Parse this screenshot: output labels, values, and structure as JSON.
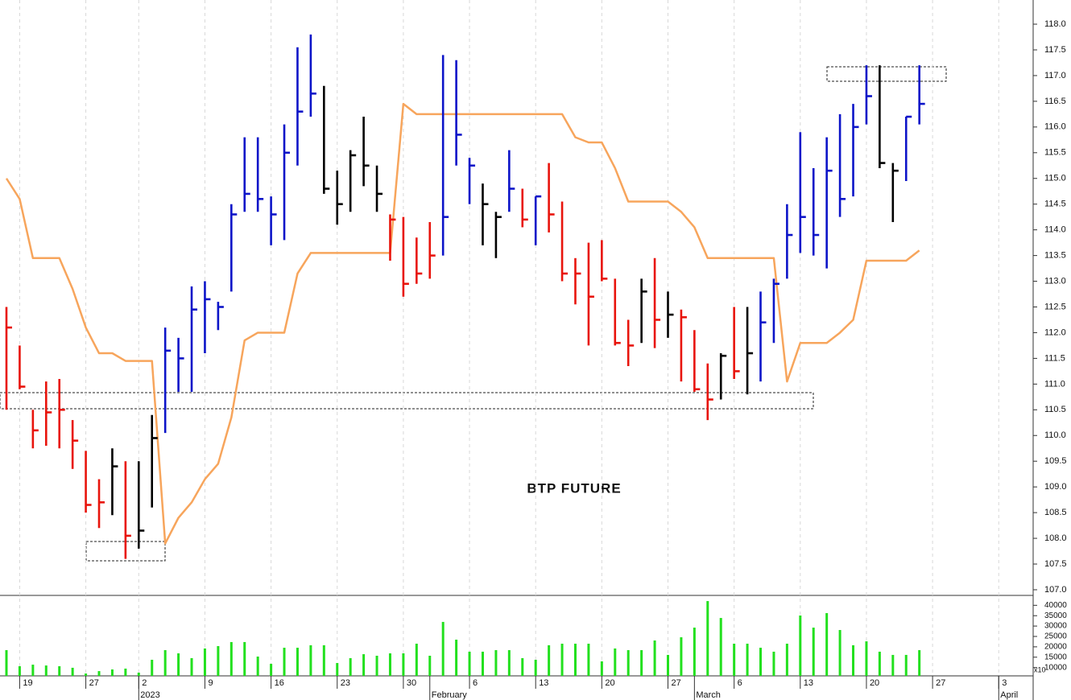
{
  "chart_data": {
    "type": "hlc",
    "title": "BTP FUTURE",
    "categories": [
      null,
      "19",
      null,
      null,
      null,
      null,
      "27",
      null,
      null,
      null,
      "2",
      null,
      null,
      null,
      null,
      "9",
      null,
      null,
      null,
      null,
      "16",
      null,
      null,
      null,
      null,
      "23",
      null,
      null,
      null,
      null,
      "30",
      null,
      null,
      null,
      null,
      "6",
      null,
      null,
      null,
      null,
      "13",
      null,
      null,
      null,
      null,
      "20",
      null,
      null,
      null,
      null,
      "27",
      null,
      null,
      null,
      null,
      "6",
      null,
      null,
      null,
      null,
      "13",
      null,
      null,
      null,
      null,
      "20",
      null,
      null,
      null,
      null,
      "27",
      null,
      null,
      null,
      null,
      "3",
      null,
      null
    ],
    "months": [
      null,
      null,
      null,
      null,
      null,
      null,
      null,
      null,
      null,
      null,
      "2023",
      null,
      null,
      null,
      null,
      null,
      null,
      null,
      null,
      null,
      null,
      null,
      null,
      null,
      null,
      null,
      null,
      null,
      null,
      null,
      null,
      null,
      "February",
      null,
      null,
      null,
      null,
      null,
      null,
      null,
      null,
      null,
      null,
      null,
      null,
      null,
      null,
      null,
      null,
      null,
      null,
      null,
      "March",
      null,
      null,
      null,
      null,
      null,
      null,
      null,
      null,
      null,
      null,
      null,
      null,
      null,
      null,
      null,
      null,
      null,
      null,
      null,
      null,
      null,
      null,
      "April",
      null,
      null
    ],
    "high": [
      112.5,
      111.75,
      110.5,
      111.05,
      111.1,
      110.3,
      109.7,
      109.15,
      109.75,
      109.5,
      109.5,
      110.4,
      112.1,
      111.9,
      112.9,
      113.0,
      112.6,
      114.5,
      115.8,
      115.8,
      114.65,
      116.05,
      117.55,
      117.8,
      116.8,
      115.15,
      115.55,
      116.2,
      115.25,
      114.3,
      114.25,
      113.85,
      114.15,
      117.4,
      117.3,
      115.4,
      114.9,
      114.35,
      115.55,
      114.8,
      114.65,
      115.3,
      114.55,
      113.45,
      113.75,
      113.8,
      113.05,
      112.25,
      113.05,
      113.45,
      112.8,
      112.45,
      112.05,
      111.4,
      111.6,
      112.5,
      112.5,
      112.8,
      113.05,
      114.5,
      115.9,
      115.2,
      115.8,
      116.25,
      116.45,
      117.2,
      117.2,
      115.3,
      116.2,
      117.2,
      null,
      null,
      null,
      null,
      null,
      null,
      null,
      null
    ],
    "low": [
      110.5,
      110.9,
      109.75,
      109.8,
      109.75,
      109.35,
      108.5,
      108.2,
      108.45,
      107.6,
      107.8,
      108.6,
      110.05,
      110.85,
      110.85,
      111.6,
      112.05,
      112.8,
      114.35,
      114.35,
      113.7,
      113.8,
      115.25,
      116.2,
      114.7,
      114.1,
      114.35,
      114.85,
      114.35,
      113.4,
      112.7,
      112.95,
      113.05,
      113.5,
      115.25,
      114.5,
      113.7,
      113.45,
      114.35,
      114.05,
      113.7,
      113.95,
      113.0,
      112.55,
      111.75,
      113.0,
      111.75,
      111.35,
      111.8,
      111.7,
      111.9,
      111.05,
      110.85,
      110.3,
      110.7,
      111.1,
      110.8,
      111.05,
      111.8,
      113.05,
      113.55,
      113.5,
      113.25,
      114.25,
      114.65,
      116.05,
      115.2,
      114.15,
      114.95,
      116.05,
      null,
      null,
      null,
      null,
      null,
      null,
      null,
      null
    ],
    "close": [
      112.1,
      110.95,
      110.1,
      110.45,
      110.5,
      109.9,
      108.65,
      108.7,
      109.4,
      108.05,
      108.15,
      109.95,
      111.65,
      111.5,
      112.45,
      112.65,
      112.5,
      114.3,
      114.7,
      114.6,
      114.3,
      115.5,
      116.3,
      116.65,
      114.8,
      114.5,
      115.45,
      115.25,
      114.7,
      114.2,
      112.95,
      113.15,
      113.5,
      114.25,
      115.85,
      115.25,
      114.5,
      114.25,
      114.8,
      114.2,
      114.65,
      114.3,
      113.15,
      113.15,
      112.7,
      113.05,
      111.8,
      111.75,
      112.8,
      112.25,
      112.35,
      112.3,
      110.9,
      110.7,
      111.55,
      111.25,
      111.6,
      112.2,
      112.95,
      113.9,
      114.25,
      113.9,
      115.15,
      114.6,
      116.0,
      116.6,
      115.3,
      115.15,
      116.2,
      116.45,
      null,
      null,
      null,
      null,
      null,
      null,
      null,
      null
    ],
    "bar_colors": [
      "#e8140c",
      "#e8140c",
      "#e8140c",
      "#e8140c",
      "#e8140c",
      "#e8140c",
      "#e8140c",
      "#e8140c",
      "#000000",
      "#e8140c",
      "#000000",
      "#000000",
      "#0c14c8",
      "#0c14c8",
      "#0c14c8",
      "#0c14c8",
      "#0c14c8",
      "#0c14c8",
      "#0c14c8",
      "#0c14c8",
      "#0c14c8",
      "#0c14c8",
      "#0c14c8",
      "#0c14c8",
      "#000000",
      "#000000",
      "#000000",
      "#000000",
      "#000000",
      "#e8140c",
      "#e8140c",
      "#e8140c",
      "#e8140c",
      "#0c14c8",
      "#0c14c8",
      "#0c14c8",
      "#000000",
      "#000000",
      "#0c14c8",
      "#e8140c",
      "#0c14c8",
      "#e8140c",
      "#e8140c",
      "#e8140c",
      "#e8140c",
      "#e8140c",
      "#e8140c",
      "#e8140c",
      "#000000",
      "#e8140c",
      "#000000",
      "#e8140c",
      "#e8140c",
      "#e8140c",
      "#000000",
      "#e8140c",
      "#000000",
      "#0c14c8",
      "#0c14c8",
      "#0c14c8",
      "#0c14c8",
      "#0c14c8",
      "#0c14c8",
      "#0c14c8",
      "#0c14c8",
      "#0c14c8",
      "#000000",
      "#000000",
      "#0c14c8",
      "#0c14c8",
      null,
      null,
      null,
      null,
      null,
      null,
      null,
      null
    ],
    "stop": [
      115.0,
      114.6,
      113.45,
      113.45,
      113.45,
      112.85,
      112.1,
      111.6,
      111.6,
      111.45,
      111.45,
      111.45,
      107.9,
      108.4,
      108.7,
      109.15,
      109.45,
      110.35,
      111.85,
      112.0,
      112.0,
      112.0,
      113.15,
      113.55,
      113.55,
      113.55,
      113.55,
      113.55,
      113.55,
      113.55,
      116.45,
      116.25,
      116.25,
      116.25,
      116.25,
      116.25,
      116.25,
      116.25,
      116.25,
      116.25,
      116.25,
      116.25,
      116.25,
      115.8,
      115.7,
      115.7,
      115.2,
      114.55,
      114.55,
      114.55,
      114.55,
      114.35,
      114.05,
      113.45,
      113.45,
      113.45,
      113.45,
      113.45,
      113.45,
      111.05,
      111.8,
      111.8,
      111.8,
      112.0,
      112.25,
      113.4,
      113.4,
      113.4,
      113.4,
      113.6,
      null,
      null,
      null,
      null,
      null,
      null,
      null,
      null
    ],
    "stop_color": "#f7a55c",
    "ylim": [
      106.89,
      118.47
    ],
    "yticks": [
      {
        "value": 107,
        "label": "107.0"
      },
      {
        "value": 107.5,
        "label": "107.5"
      },
      {
        "value": 108,
        "label": "108.0"
      },
      {
        "value": 108.5,
        "label": "108.5"
      },
      {
        "value": 109,
        "label": "109.0"
      },
      {
        "value": 109.5,
        "label": "109.5"
      },
      {
        "value": 110,
        "label": "110.0"
      },
      {
        "value": 110.5,
        "label": "110.5"
      },
      {
        "value": 111,
        "label": "111.0"
      },
      {
        "value": 111.5,
        "label": "111.5"
      },
      {
        "value": 112,
        "label": "112.0"
      },
      {
        "value": 112.5,
        "label": "112.5"
      },
      {
        "value": 113,
        "label": "113.0"
      },
      {
        "value": 113.5,
        "label": "113.5"
      },
      {
        "value": 114,
        "label": "114.0"
      },
      {
        "value": 114.5,
        "label": "114.5"
      },
      {
        "value": 115,
        "label": "115.0"
      },
      {
        "value": 115.5,
        "label": "115.5"
      },
      {
        "value": 116,
        "label": "116.0"
      },
      {
        "value": 116.5,
        "label": "116.5"
      },
      {
        "value": 117,
        "label": "117.0"
      },
      {
        "value": 117.5,
        "label": "117.5"
      },
      {
        "value": 118,
        "label": "118.0"
      }
    ],
    "volume": [
      18400,
      10650,
      11400,
      11000,
      10650,
      9900,
      7150,
      8300,
      9100,
      9500,
      7550,
      13750,
      18400,
      16850,
      14550,
      19200,
      20350,
      22300,
      22300,
      15300,
      11800,
      19550,
      19550,
      20750,
      20750,
      12200,
      14550,
      16450,
      15700,
      16850,
      16850,
      21500,
      15700,
      32000,
      23450,
      17650,
      17650,
      18400,
      18400,
      14550,
      13750,
      20750,
      21500,
      21500,
      21500,
      13000,
      19200,
      18400,
      18400,
      23050,
      16100,
      24600,
      29250,
      42050,
      33900,
      21500,
      21500,
      19550,
      17650,
      21500,
      35100,
      29250,
      36250,
      28100,
      20750,
      22650,
      17650,
      16100,
      16100,
      18400,
      null,
      null,
      null,
      null,
      null,
      null,
      null,
      null
    ],
    "volume_color": "#22e01e",
    "volume_lim": [
      6000,
      44000
    ],
    "volume_ticks": [
      10000,
      15000,
      20000,
      25000,
      30000,
      35000,
      40000
    ],
    "volume_unit": "x10"
  }
}
